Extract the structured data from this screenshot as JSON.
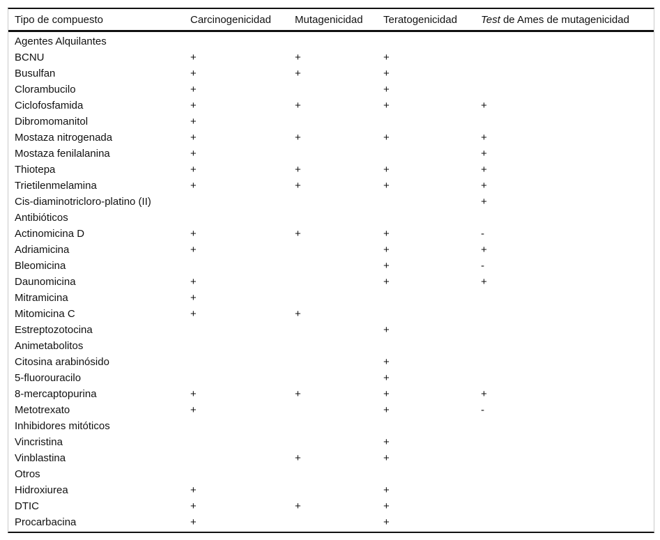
{
  "page": {
    "background_color": "#ffffff",
    "rule_color": "#111111",
    "frame_side_border_color": "#c9c9c9",
    "text_color": "#111111"
  },
  "table": {
    "header": {
      "tipo": "Tipo de compuesto",
      "carcinogenicidad": "Carcinogenicidad",
      "mutagenicidad": "Mutagenicidad",
      "teratogenicidad": "Teratogenicidad",
      "ames_italic": "Test",
      "ames_rest": " de Ames de mutagenicidad"
    },
    "marker_positive": "+",
    "marker_negative": "-",
    "rows": [
      {
        "type": "section",
        "name": "Agentes Alquilantes",
        "c": "",
        "m": "",
        "t": "",
        "a": ""
      },
      {
        "type": "compound",
        "name": "BCNU",
        "c": "+",
        "m": "+",
        "t": "+",
        "a": ""
      },
      {
        "type": "compound",
        "name": "Busulfan",
        "c": "+",
        "m": "+",
        "t": "+",
        "a": ""
      },
      {
        "type": "compound",
        "name": "Clorambucilo",
        "c": "+",
        "m": "",
        "t": "+",
        "a": ""
      },
      {
        "type": "compound",
        "name": "Ciclofosfamida",
        "c": "+",
        "m": "+",
        "t": "+",
        "a": "+"
      },
      {
        "type": "compound",
        "name": "Dibromomanitol",
        "c": "+",
        "m": "",
        "t": "",
        "a": ""
      },
      {
        "type": "compound",
        "name": "Mostaza nitrogenada",
        "c": "+",
        "m": "+",
        "t": "+",
        "a": "+"
      },
      {
        "type": "compound",
        "name": "Mostaza fenilalanina",
        "c": "+",
        "m": "",
        "t": "",
        "a": "+"
      },
      {
        "type": "compound",
        "name": "Thiotepa",
        "c": "+",
        "m": "+",
        "t": "+",
        "a": "+"
      },
      {
        "type": "compound",
        "name": "Trietilenmelamina",
        "c": "+",
        "m": "+",
        "t": "+",
        "a": "+"
      },
      {
        "type": "compound",
        "name": "Cis-diaminotricloro-platino (II)",
        "c": "",
        "m": "",
        "t": "",
        "a": "+"
      },
      {
        "type": "section",
        "name": "Antibióticos",
        "c": "",
        "m": "",
        "t": "",
        "a": ""
      },
      {
        "type": "compound",
        "name": "Actinomicina D",
        "c": "+",
        "m": "+",
        "t": "+",
        "a": "-"
      },
      {
        "type": "compound",
        "name": "Adriamicina",
        "c": "+",
        "m": "",
        "t": "+",
        "a": "+"
      },
      {
        "type": "compound",
        "name": "Bleomicina",
        "c": "",
        "m": "",
        "t": "+",
        "a": "-"
      },
      {
        "type": "compound",
        "name": "Daunomicina",
        "c": "+",
        "m": "",
        "t": "+",
        "a": "+"
      },
      {
        "type": "compound",
        "name": "Mitramicina",
        "c": "+",
        "m": "",
        "t": "",
        "a": ""
      },
      {
        "type": "compound",
        "name": "Mitomicina C",
        "c": "+",
        "m": "+",
        "t": "",
        "a": ""
      },
      {
        "type": "compound",
        "name": "Estreptozotocina",
        "c": "",
        "m": "",
        "t": "+",
        "a": ""
      },
      {
        "type": "section",
        "name": "Animetabolitos",
        "c": "",
        "m": "",
        "t": "",
        "a": ""
      },
      {
        "type": "compound",
        "name": "Citosina arabinósido",
        "c": "",
        "m": "",
        "t": "+",
        "a": ""
      },
      {
        "type": "compound",
        "name": "5-fluorouracilo",
        "c": "",
        "m": "",
        "t": "+",
        "a": ""
      },
      {
        "type": "compound",
        "name": "8-mercaptopurina",
        "c": "+",
        "m": "+",
        "t": "+",
        "a": "+"
      },
      {
        "type": "compound",
        "name": "Metotrexato",
        "c": "+",
        "m": "",
        "t": "+",
        "a": "-"
      },
      {
        "type": "section",
        "name": "Inhibidores mitóticos",
        "c": "",
        "m": "",
        "t": "",
        "a": ""
      },
      {
        "type": "compound",
        "name": "Vincristina",
        "c": "",
        "m": "",
        "t": "+",
        "a": ""
      },
      {
        "type": "compound",
        "name": "Vinblastina",
        "c": "",
        "m": "+",
        "t": "+",
        "a": ""
      },
      {
        "type": "section",
        "name": "Otros",
        "c": "",
        "m": "",
        "t": "",
        "a": ""
      },
      {
        "type": "compound",
        "name": "Hidroxiurea",
        "c": "+",
        "m": "",
        "t": "+",
        "a": ""
      },
      {
        "type": "compound",
        "name": "DTIC",
        "c": "+",
        "m": "+",
        "t": "+",
        "a": ""
      },
      {
        "type": "compound",
        "name": "Procarbacina",
        "c": "+",
        "m": "",
        "t": "+",
        "a": ""
      }
    ]
  }
}
